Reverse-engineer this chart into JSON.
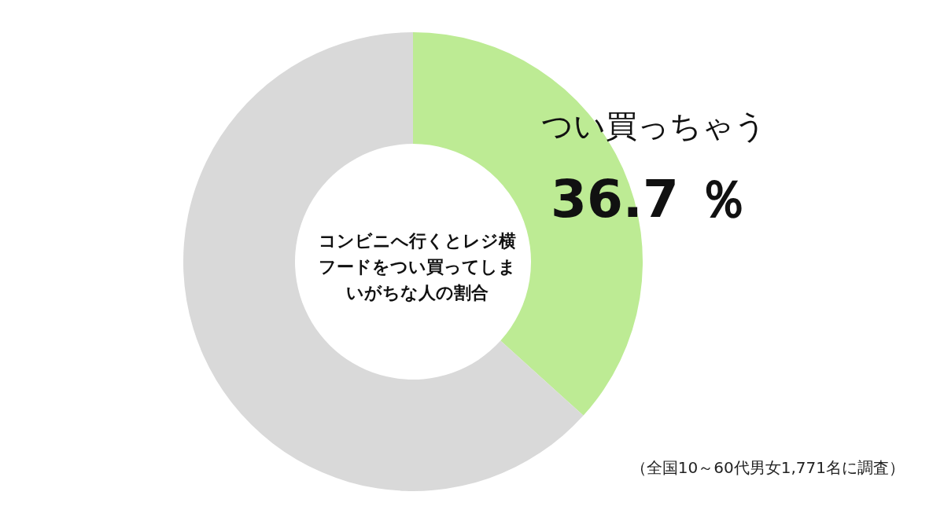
{
  "chart_data": {
    "type": "donut",
    "title": "コンビニへ行くとレジ横フードをつい買ってしまいがちな人の割合",
    "categories": [
      "つい買っちゃう",
      null
    ],
    "values": [
      36.7,
      63.3
    ],
    "value_labels": [
      "36.7 ％",
      null
    ],
    "colors": [
      "#bdeb94",
      "#d9d9d9"
    ],
    "legend": false,
    "annotations": [
      "（全国10～60代男女1,771名に調査）"
    ]
  }
}
